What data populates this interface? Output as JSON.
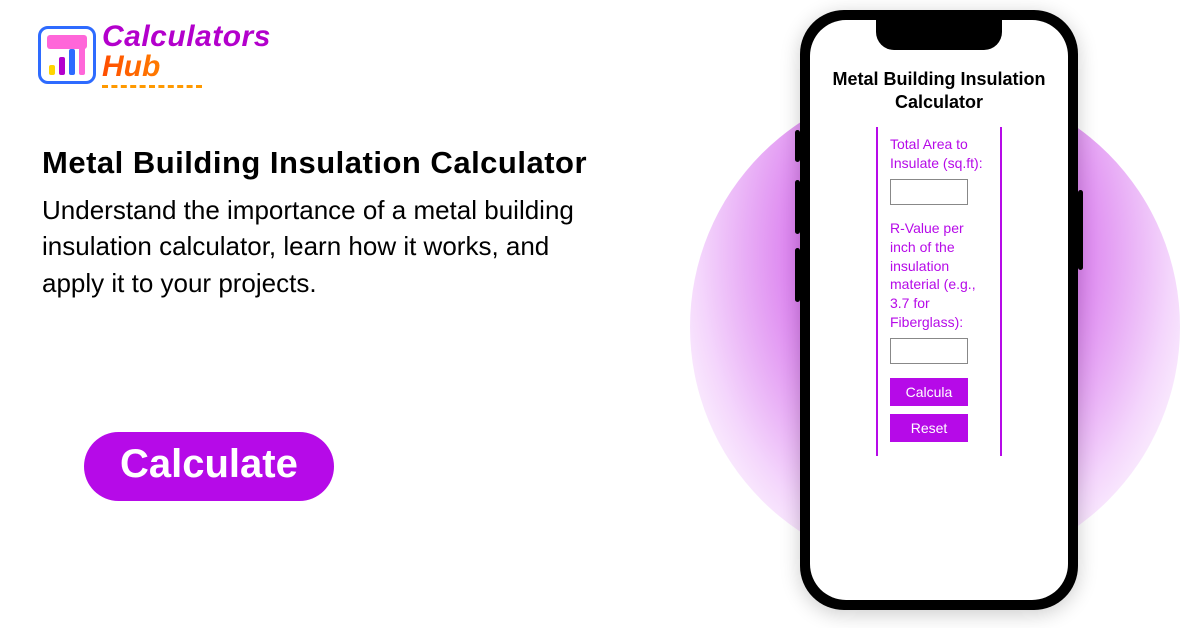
{
  "colors": {
    "brand_purple": "#b300cc",
    "cta_bg": "#b60ae8",
    "cta_text": "#ffffff",
    "text_black": "#000000",
    "circle_gradient_inner": "#c93ae8",
    "circle_gradient_outer": "#ffffff",
    "logo_border": "#2e6bff"
  },
  "logo": {
    "line1": "Calculators",
    "line2": "Hub",
    "bars": [
      {
        "h": 10,
        "color": "#ffd400"
      },
      {
        "h": 18,
        "color": "#b300cc"
      },
      {
        "h": 26,
        "color": "#2e6bff"
      },
      {
        "h": 34,
        "color": "#ff66d9"
      }
    ]
  },
  "headline": "Metal Building Insulation Calculator",
  "subtext": "Understand the importance of a metal building insulation calculator, learn how it works, and apply it to your projects.",
  "cta_label": "Calculate",
  "phone": {
    "title": "Metal Building Insulation Calculator",
    "field1_label": "Total Area to Insulate (sq.ft):",
    "field2_label": "R-Value per inch of the insulation material (e.g., 3.7 for Fiberglass):",
    "calc_btn": "Calcula",
    "reset_btn": "Reset"
  }
}
